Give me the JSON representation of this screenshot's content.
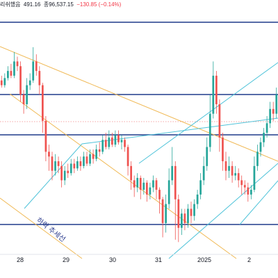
{
  "header": {
    "title_fragment": "리쉬했음",
    "open_fragment": "491.16",
    "close_label": "종",
    "close_value": "96,537.15",
    "change": "−130.85 (−0.14%)"
  },
  "colors": {
    "up": "#26a69a",
    "down": "#ef5350",
    "horizontal_level": "#1e3a8a",
    "uptrend_line": "#4fc3d9",
    "downtrend_line": "#f0b955",
    "dotted_level": "#f4a6a6"
  },
  "chart_data": {
    "type": "candlestick",
    "x_ticks": [
      "28",
      "29",
      "30",
      "31",
      "2025",
      "2"
    ],
    "annotation": "하락 추세선",
    "horizontal_levels": 4,
    "candles": [
      [
        0.72,
        0.7,
        0.74,
        0.69
      ],
      [
        0.7,
        0.73,
        0.75,
        0.69
      ],
      [
        0.73,
        0.76,
        0.78,
        0.72
      ],
      [
        0.76,
        0.74,
        0.79,
        0.73
      ],
      [
        0.74,
        0.8,
        0.84,
        0.73
      ],
      [
        0.8,
        0.78,
        0.82,
        0.76
      ],
      [
        0.78,
        0.66,
        0.8,
        0.63
      ],
      [
        0.66,
        0.62,
        0.68,
        0.58
      ],
      [
        0.62,
        0.7,
        0.73,
        0.6
      ],
      [
        0.7,
        0.72,
        0.75,
        0.68
      ],
      [
        0.72,
        0.8,
        0.86,
        0.71
      ],
      [
        0.8,
        0.76,
        0.83,
        0.74
      ],
      [
        0.76,
        0.7,
        0.78,
        0.66
      ],
      [
        0.7,
        0.55,
        0.71,
        0.5
      ],
      [
        0.55,
        0.42,
        0.57,
        0.38
      ],
      [
        0.42,
        0.4,
        0.45,
        0.34
      ],
      [
        0.4,
        0.34,
        0.42,
        0.3
      ],
      [
        0.34,
        0.38,
        0.41,
        0.32
      ],
      [
        0.38,
        0.36,
        0.4,
        0.33
      ],
      [
        0.36,
        0.3,
        0.38,
        0.27
      ],
      [
        0.3,
        0.34,
        0.36,
        0.28
      ],
      [
        0.34,
        0.33,
        0.37,
        0.31
      ],
      [
        0.33,
        0.37,
        0.39,
        0.32
      ],
      [
        0.37,
        0.35,
        0.39,
        0.33
      ],
      [
        0.35,
        0.38,
        0.4,
        0.34
      ],
      [
        0.38,
        0.36,
        0.4,
        0.34
      ],
      [
        0.36,
        0.4,
        0.42,
        0.35
      ],
      [
        0.4,
        0.37,
        0.42,
        0.36
      ],
      [
        0.37,
        0.41,
        0.43,
        0.36
      ],
      [
        0.41,
        0.39,
        0.43,
        0.37
      ],
      [
        0.39,
        0.43,
        0.45,
        0.38
      ],
      [
        0.43,
        0.42,
        0.46,
        0.4
      ],
      [
        0.42,
        0.47,
        0.49,
        0.41
      ],
      [
        0.47,
        0.44,
        0.5,
        0.43
      ],
      [
        0.44,
        0.48,
        0.51,
        0.43
      ],
      [
        0.48,
        0.45,
        0.5,
        0.44
      ],
      [
        0.45,
        0.49,
        0.51,
        0.44
      ],
      [
        0.49,
        0.46,
        0.51,
        0.45
      ],
      [
        0.46,
        0.47,
        0.49,
        0.43
      ],
      [
        0.47,
        0.44,
        0.48,
        0.42
      ],
      [
        0.44,
        0.36,
        0.45,
        0.32
      ],
      [
        0.36,
        0.3,
        0.38,
        0.26
      ],
      [
        0.3,
        0.27,
        0.32,
        0.23
      ],
      [
        0.27,
        0.31,
        0.33,
        0.25
      ],
      [
        0.31,
        0.26,
        0.32,
        0.22
      ],
      [
        0.26,
        0.29,
        0.31,
        0.24
      ],
      [
        0.29,
        0.24,
        0.3,
        0.21
      ],
      [
        0.24,
        0.27,
        0.29,
        0.22
      ],
      [
        0.27,
        0.3,
        0.32,
        0.25
      ],
      [
        0.3,
        0.26,
        0.31,
        0.22
      ],
      [
        0.26,
        0.22,
        0.27,
        0.16
      ],
      [
        0.22,
        0.12,
        0.23,
        0.06
      ],
      [
        0.12,
        0.2,
        0.24,
        0.08
      ],
      [
        0.2,
        0.3,
        0.35,
        0.18
      ],
      [
        0.3,
        0.36,
        0.44,
        0.28
      ],
      [
        0.36,
        0.22,
        0.38,
        0.05
      ],
      [
        0.22,
        0.1,
        0.24,
        0.04
      ],
      [
        0.1,
        0.16,
        0.18,
        0.07
      ],
      [
        0.16,
        0.12,
        0.18,
        0.09
      ],
      [
        0.12,
        0.18,
        0.2,
        0.1
      ],
      [
        0.18,
        0.15,
        0.21,
        0.12
      ],
      [
        0.15,
        0.2,
        0.22,
        0.13
      ],
      [
        0.2,
        0.24,
        0.26,
        0.18
      ],
      [
        0.24,
        0.3,
        0.33,
        0.22
      ],
      [
        0.3,
        0.36,
        0.4,
        0.28
      ],
      [
        0.36,
        0.44,
        0.48,
        0.34
      ],
      [
        0.44,
        0.58,
        0.66,
        0.42
      ],
      [
        0.58,
        0.74,
        0.8,
        0.56
      ],
      [
        0.74,
        0.62,
        0.76,
        0.58
      ],
      [
        0.62,
        0.48,
        0.64,
        0.42
      ],
      [
        0.48,
        0.38,
        0.5,
        0.34
      ],
      [
        0.38,
        0.34,
        0.42,
        0.3
      ],
      [
        0.34,
        0.36,
        0.4,
        0.31
      ],
      [
        0.36,
        0.32,
        0.38,
        0.29
      ],
      [
        0.32,
        0.33,
        0.36,
        0.3
      ],
      [
        0.33,
        0.3,
        0.35,
        0.27
      ],
      [
        0.3,
        0.28,
        0.32,
        0.24
      ],
      [
        0.28,
        0.27,
        0.3,
        0.24
      ],
      [
        0.27,
        0.24,
        0.29,
        0.21
      ],
      [
        0.24,
        0.26,
        0.28,
        0.22
      ],
      [
        0.26,
        0.36,
        0.4,
        0.25
      ],
      [
        0.36,
        0.42,
        0.45,
        0.34
      ],
      [
        0.42,
        0.46,
        0.48,
        0.4
      ],
      [
        0.46,
        0.5,
        0.52,
        0.44
      ],
      [
        0.5,
        0.54,
        0.57,
        0.48
      ],
      [
        0.54,
        0.6,
        0.63,
        0.52
      ],
      [
        0.6,
        0.58,
        0.63,
        0.55
      ],
      [
        0.58,
        0.66,
        0.69,
        0.56
      ]
    ]
  }
}
